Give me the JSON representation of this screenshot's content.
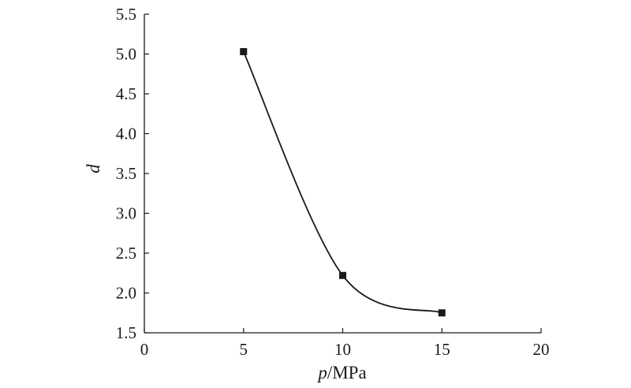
{
  "chart_data": {
    "type": "line",
    "xlabel_var": "p",
    "xlabel_unit": "/MPa",
    "ylabel": "d",
    "xlim": [
      0,
      20
    ],
    "ylim": [
      1.5,
      5.5
    ],
    "x_ticks": [
      "0",
      "5",
      "10",
      "15",
      "20"
    ],
    "y_ticks": [
      "1.5",
      "2.0",
      "2.5",
      "3.0",
      "3.5",
      "4.0",
      "4.5",
      "5.0",
      "5.5"
    ],
    "grid": false,
    "series": [
      {
        "x": [
          5,
          10,
          15
        ],
        "y": [
          5.03,
          2.22,
          1.75
        ],
        "marker": "square",
        "smooth": true,
        "color": "#1a1a1a"
      }
    ]
  }
}
